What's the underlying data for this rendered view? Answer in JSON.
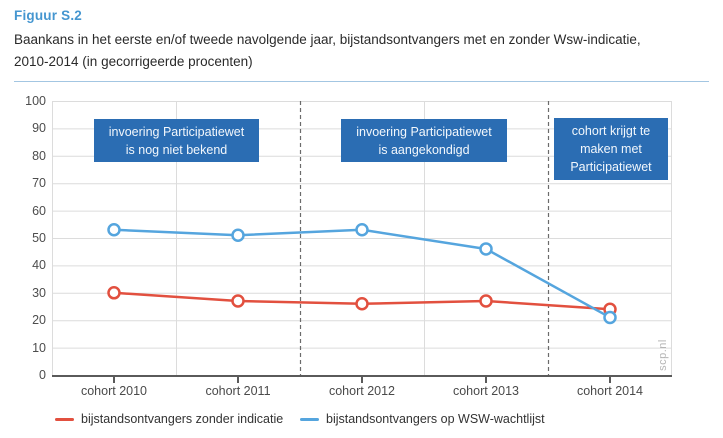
{
  "header": {
    "figure_label": "Figuur S.2",
    "title": "Baankans in het eerste en/of tweede navolgende jaar, bijstandsontvangers met en zonder Wsw-indicatie,\n2010-2014 (in gecorrigeerde procenten)"
  },
  "chart_data": {
    "type": "line",
    "categories": [
      "cohort 2010",
      "cohort 2011",
      "cohort 2012",
      "cohort 2013",
      "cohort 2014"
    ],
    "series": [
      {
        "name": "bijstandsontvangers zonder indicatie",
        "color": "#e2503f",
        "values": [
          30,
          27,
          26,
          27,
          24
        ]
      },
      {
        "name": "bijstandsontvangers op WSW-wachtlijst",
        "color": "#55a5de",
        "values": [
          53,
          51,
          53,
          46,
          21
        ]
      }
    ],
    "ylabel": "",
    "xlabel": "",
    "ylim": [
      0,
      100
    ],
    "y_step": 10,
    "grid": "on",
    "legend_position": "bottom",
    "marker": "open-circle",
    "annotations": [
      {
        "text": "invoering Participatiewet\nis nog niet bekend",
        "region": "cohort 2010 - cohort 2011"
      },
      {
        "text": "invoering Participatiewet\nis aangekondigd",
        "region": "cohort 2012 - cohort 2013"
      },
      {
        "text": "cohort krijgt te\nmaken met\nParticipatiewet",
        "region": "cohort 2014"
      }
    ],
    "separators_after_category": [
      2,
      4
    ],
    "watermark": "scp.nl",
    "colors": {
      "annotation_box": "#2b6db3",
      "axis": "#5a5a5a",
      "gridline": "#dcdcdc",
      "separator_dash": "#6b6b6b",
      "figure_label_blue": "#4596d0"
    }
  }
}
